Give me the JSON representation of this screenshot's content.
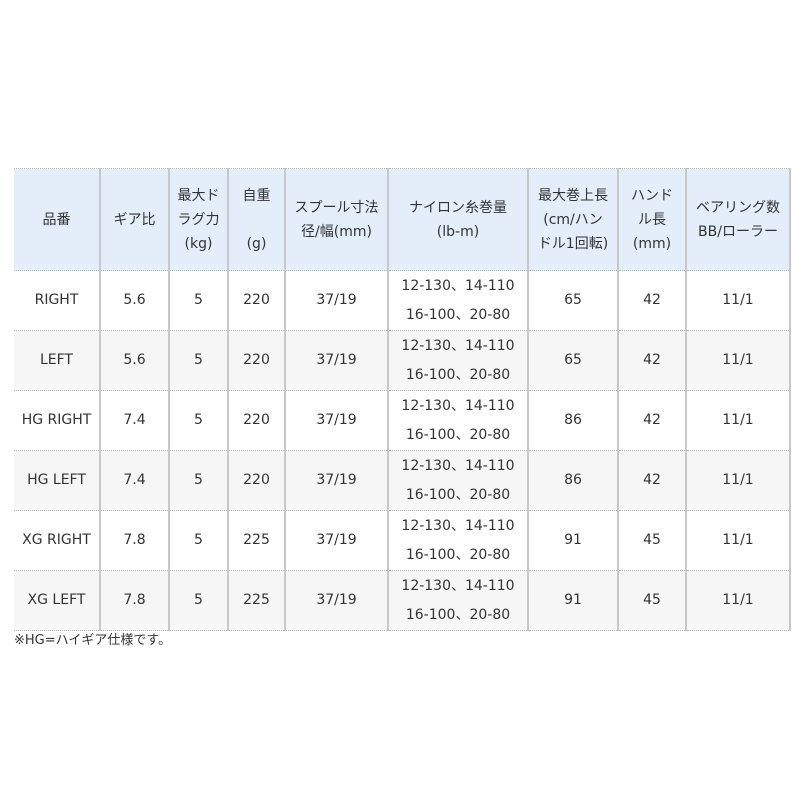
{
  "headers": [
    [
      "品番"
    ],
    [
      "ギア比"
    ],
    [
      "最大ド",
      "ラグ力",
      "(kg)"
    ],
    [
      "自重",
      "",
      "(g)"
    ],
    [
      "スプール寸法",
      "径/幅(mm)"
    ],
    [
      "ナイロン糸巻量",
      "(lb-m)"
    ],
    [
      "最大巻上長",
      "(cm/ハン",
      "ドル1回転)"
    ],
    [
      "ハンド",
      "ル長",
      "(mm)"
    ],
    [
      "ベアリング数",
      "BB/ローラー"
    ]
  ],
  "rows": [
    {
      "model": "RIGHT",
      "gear": "5.6",
      "drag": "5",
      "weight": "220",
      "spool": "37/19",
      "nylon1": "12-130、14-110",
      "nylon2": "16-100、20-80",
      "retrieve": "65",
      "handle": "42",
      "bearing": "11/1"
    },
    {
      "model": "LEFT",
      "gear": "5.6",
      "drag": "5",
      "weight": "220",
      "spool": "37/19",
      "nylon1": "12-130、14-110",
      "nylon2": "16-100、20-80",
      "retrieve": "65",
      "handle": "42",
      "bearing": "11/1"
    },
    {
      "model": "HG RIGHT",
      "gear": "7.4",
      "drag": "5",
      "weight": "220",
      "spool": "37/19",
      "nylon1": "12-130、14-110",
      "nylon2": "16-100、20-80",
      "retrieve": "86",
      "handle": "42",
      "bearing": "11/1"
    },
    {
      "model": "HG LEFT",
      "gear": "7.4",
      "drag": "5",
      "weight": "220",
      "spool": "37/19",
      "nylon1": "12-130、14-110",
      "nylon2": "16-100、20-80",
      "retrieve": "86",
      "handle": "42",
      "bearing": "11/1"
    },
    {
      "model": "XG RIGHT",
      "gear": "7.8",
      "drag": "5",
      "weight": "225",
      "spool": "37/19",
      "nylon1": "12-130、14-110",
      "nylon2": "16-100、20-80",
      "retrieve": "91",
      "handle": "45",
      "bearing": "11/1"
    },
    {
      "model": "XG LEFT",
      "gear": "7.8",
      "drag": "5",
      "weight": "225",
      "spool": "37/19",
      "nylon1": "12-130、14-110",
      "nylon2": "16-100、20-80",
      "retrieve": "91",
      "handle": "45",
      "bearing": "11/1"
    }
  ],
  "footnote": "※HG=ハイギア仕様です。",
  "colors": {
    "header_bg": "#e3eefa",
    "alt_row_bg": "#f6f6f6",
    "border": "#c8c8c8"
  }
}
